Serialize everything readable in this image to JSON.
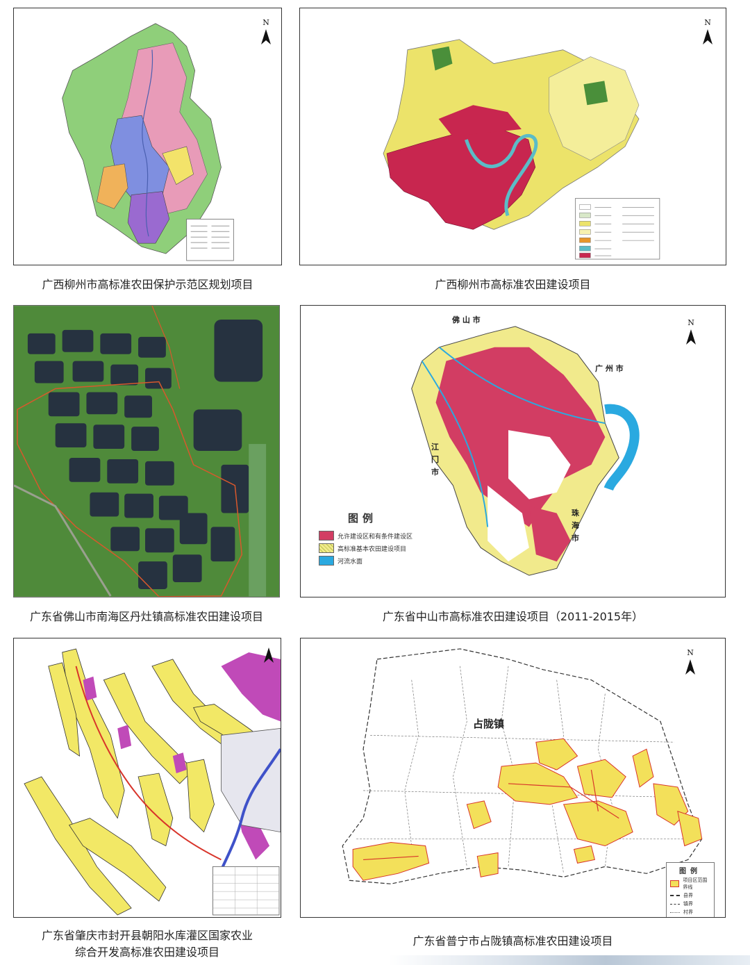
{
  "panels": [
    {
      "id": "p1",
      "caption": "广西柳州市高标准农田保护示范区规划项目",
      "north": "N",
      "colors": {
        "green": "#8fcf7a",
        "pink": "#e89bb8",
        "blue": "#7f8fe0",
        "purple": "#9a6ad0",
        "orange": "#f0b25a",
        "yellow": "#f3e36a"
      }
    },
    {
      "id": "p2",
      "caption": "广西柳州市高标准农田建设项目",
      "north": "N",
      "colors": {
        "red": "#c8264f",
        "yellow": "#ece36a",
        "river": "#5bbcc7",
        "green": "#4a8f3a"
      }
    },
    {
      "id": "p3",
      "caption": "广东省佛山市南海区丹灶镇高标准农田建设项目",
      "colors": {
        "vegetation": "#4f8a3a",
        "pond": "#263240",
        "boundary": "#d9582c"
      }
    },
    {
      "id": "p4",
      "caption": "广东省中山市高标准农田建设项目（2011-2015年）",
      "north": "N",
      "labels": {
        "top": "佛 山 市",
        "right": "广 州 市",
        "left": "江\n门\n市",
        "right_lower": "珠\n海\n市"
      },
      "legend": {
        "title": "图例",
        "items": [
          {
            "label": "允许建设区和有条件建设区",
            "color": "#d23d63"
          },
          {
            "label": "高标准基本农田建设项目",
            "color": "#f1ea8c"
          },
          {
            "label": "河流水面",
            "color": "#2aa9e0"
          }
        ]
      }
    },
    {
      "id": "p5",
      "caption_line1": "广东省肇庆市封开县朝阳水库灌区国家农业",
      "caption_line2": "综合开发高标准农田建设项目",
      "colors": {
        "yellow": "#f2e866",
        "magenta": "#c04ab8",
        "blue": "#3f52c9",
        "red": "#d8342a"
      }
    },
    {
      "id": "p6",
      "caption": "广东省普宁市占陇镇高标准农田建设项目",
      "north": "N",
      "town_label": "占陇镇",
      "legend": {
        "title": "图例",
        "items": [
          {
            "label": "项目区范围界线",
            "color": "#f3e05a"
          },
          {
            "label": "县界",
            "color": "#333333"
          },
          {
            "label": "镇界",
            "color": "#333333"
          },
          {
            "label": "村界",
            "color": "#666666"
          }
        ]
      }
    }
  ]
}
